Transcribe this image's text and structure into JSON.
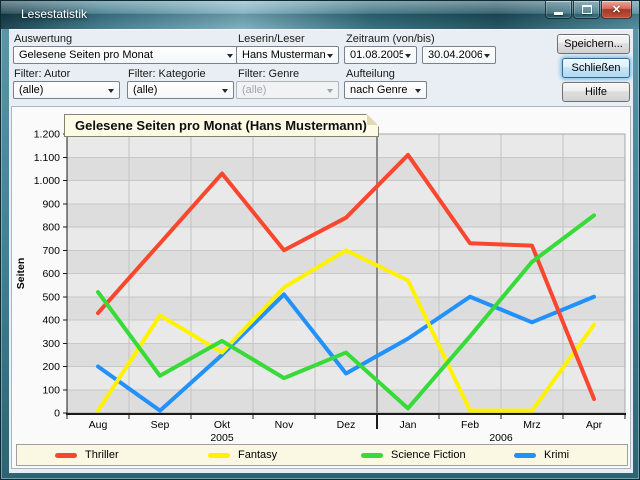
{
  "window": {
    "title": "Lesestatistik"
  },
  "icons": {
    "close": "✕"
  },
  "controls": {
    "auswertung": {
      "label": "Auswertung",
      "value": "Gelesene Seiten pro Monat"
    },
    "leser": {
      "label": "Leserin/Leser",
      "value": "Hans Mustermann"
    },
    "zeitraum": {
      "label": "Zeitraum (von/bis)",
      "von": "01.08.2005",
      "bis": "30.04.2006"
    },
    "filter_autor": {
      "label": "Filter: Autor",
      "value": "(alle)"
    },
    "filter_kategorie": {
      "label": "Filter: Kategorie",
      "value": "(alle)"
    },
    "filter_genre": {
      "label": "Filter: Genre",
      "value": "(alle)"
    },
    "aufteilung": {
      "label": "Aufteilung",
      "value": "nach Genre"
    },
    "buttons": {
      "speichern": "Speichern...",
      "schliessen": "Schließen",
      "hilfe": "Hilfe"
    }
  },
  "colors": {
    "frame": "#3F7A8C",
    "default_button_glow": "#66AFE0",
    "band_dark": "#DDDDDD",
    "band_light": "#E9E9E9",
    "hgrid": "#C8C8C8",
    "vgrid": "#C4C4C4",
    "year_line": "#8A8A8A",
    "plot_border": "#A8A8A8",
    "axis": "#1A1A1A",
    "title_box_bg": "#FDFAE5",
    "legend_bg": "#FAF7E2"
  },
  "chart_data": {
    "type": "line",
    "title": "Gelesene Seiten pro Monat (Hans Mustermann)",
    "ylabel": "Seiten",
    "ylim": [
      0,
      1200
    ],
    "ytick_step": 100,
    "ytick_labels": [
      "0",
      "100",
      "200",
      "300",
      "400",
      "500",
      "600",
      "700",
      "800",
      "900",
      "1.000",
      "1.100",
      "1.200"
    ],
    "categories": [
      "Aug",
      "Sep",
      "Okt",
      "Nov",
      "Dez",
      "Jan",
      "Feb",
      "Mrz",
      "Apr"
    ],
    "year_labels": [
      {
        "text": "2005",
        "span_months": [
          0,
          4
        ]
      },
      {
        "text": "2006",
        "span_months": [
          5,
          8
        ]
      }
    ],
    "grid": "banded",
    "legend_position": "bottom",
    "series": [
      {
        "name": "Thriller",
        "color": "#F9472F",
        "values": [
          430,
          730,
          1030,
          700,
          840,
          1110,
          730,
          720,
          60
        ]
      },
      {
        "name": "Fantasy",
        "color": "#FFF200",
        "values": [
          10,
          420,
          260,
          540,
          700,
          570,
          10,
          10,
          380
        ]
      },
      {
        "name": "Science Fiction",
        "color": "#37DB37",
        "values": [
          520,
          160,
          310,
          150,
          260,
          20,
          330,
          650,
          850
        ]
      },
      {
        "name": "Krimi",
        "color": "#2191FB",
        "values": [
          200,
          10,
          250,
          510,
          170,
          320,
          500,
          390,
          500
        ]
      }
    ],
    "draw_order": [
      3,
      1,
      0,
      2
    ]
  }
}
